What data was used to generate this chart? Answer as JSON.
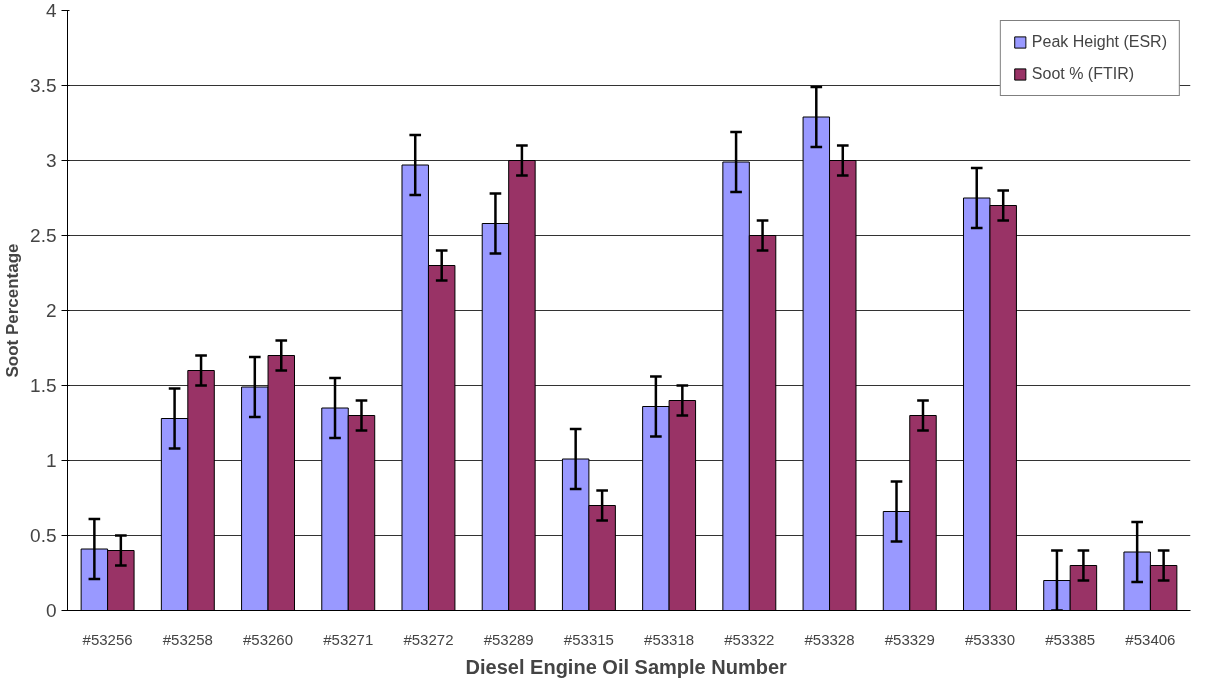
{
  "chart_data": {
    "type": "bar",
    "xlabel": "Diesel Engine  Oil Sample Number",
    "ylabel": "Soot Percentage",
    "categories": [
      "#53256",
      "#53258",
      "#53260",
      "#53271",
      "#53272",
      "#53289",
      "#53315",
      "#53318",
      "#53322",
      "#53328",
      "#53329",
      "#53330",
      "#53385",
      "#53406"
    ],
    "series": [
      {
        "name": "Peak Height (ESR)",
        "color": "#9999ff",
        "values": [
          0.41,
          1.28,
          1.49,
          1.35,
          2.97,
          2.58,
          1.01,
          1.36,
          2.99,
          3.29,
          0.66,
          2.75,
          0.2,
          0.39
        ],
        "errors": [
          0.2,
          0.2,
          0.2,
          0.2,
          0.2,
          0.2,
          0.2,
          0.2,
          0.2,
          0.2,
          0.2,
          0.2,
          0.2,
          0.2
        ]
      },
      {
        "name": "Soot % (FTIR)",
        "color": "#993366",
        "values": [
          0.4,
          1.6,
          1.7,
          1.3,
          2.3,
          3.0,
          0.7,
          1.4,
          2.5,
          3.0,
          1.3,
          2.7,
          0.3,
          0.3
        ],
        "errors": [
          0.1,
          0.1,
          0.1,
          0.1,
          0.1,
          0.1,
          0.1,
          0.1,
          0.1,
          0.1,
          0.1,
          0.1,
          0.1,
          0.1
        ]
      }
    ],
    "ylim": [
      0,
      4
    ],
    "yticks": [
      0,
      0.5,
      1,
      1.5,
      2,
      2.5,
      3,
      3.5,
      4
    ],
    "grid": "y",
    "legend": "top right"
  }
}
